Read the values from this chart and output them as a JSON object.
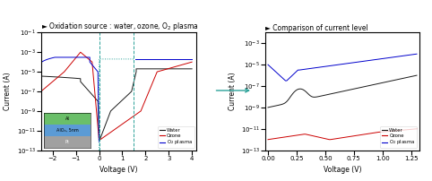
{
  "title1": "► Oxidation source : water, ozone, O$_2$ plasma",
  "title2": "► Comparison of current level",
  "xlabel": "Voltage (V)",
  "ylabel": "Current (A)",
  "bg_color": "#ffffff",
  "plot1_xlim": [
    -2.5,
    4.2
  ],
  "plot1_ylim_log": [
    -13,
    -1
  ],
  "plot2_xlim": [
    -0.02,
    1.32
  ],
  "plot2_ylim_log": [
    -13,
    -2
  ],
  "inset_layers": [
    {
      "label": "Al",
      "color": "#6abf69"
    },
    {
      "label": "AlOₓ, 5nm",
      "color": "#5b9bd5"
    },
    {
      "label": "Pt",
      "color": "#a0a0a0"
    }
  ],
  "colors": {
    "water": "#1a1a1a",
    "ozone": "#cc0000",
    "plasma": "#0000cc"
  },
  "arrow_color": "#2aa198",
  "dashed_color": "#2aa198",
  "legend1": [
    "Water",
    "Ozone",
    "O$_2$ plasma"
  ],
  "legend2": [
    "Water",
    "Ozone",
    "O$_2$ plasma"
  ]
}
